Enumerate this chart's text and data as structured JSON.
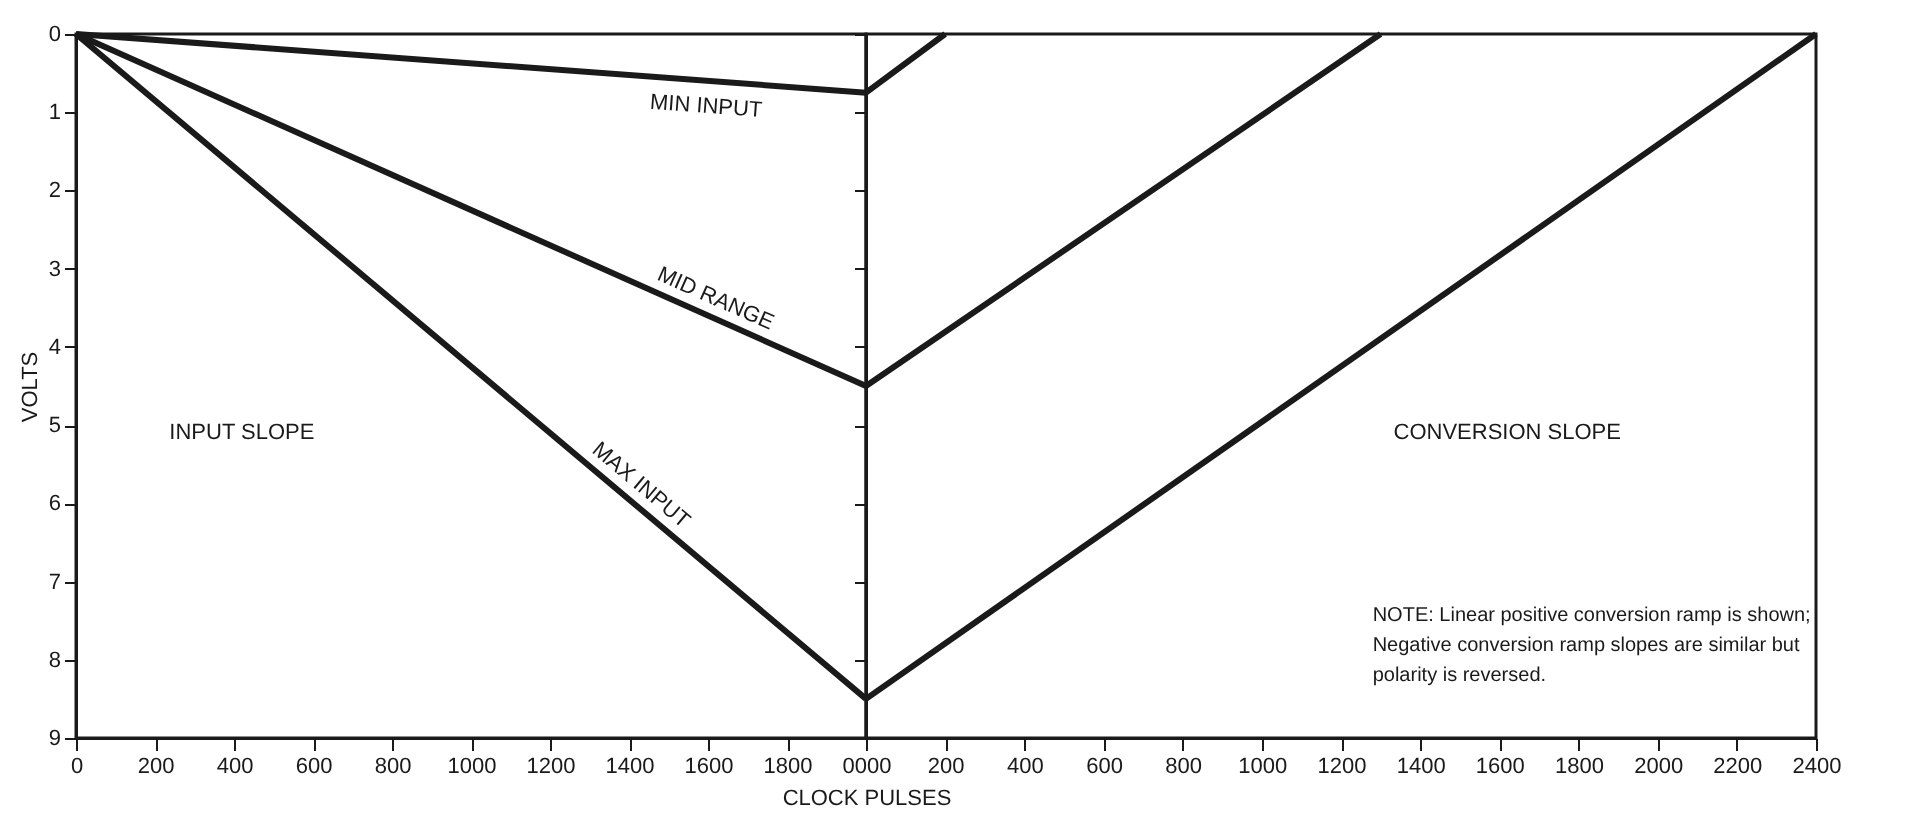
{
  "chart_data": [
    {
      "type": "line",
      "xlabel": "CLOCK PULSES",
      "ylabel": "VOLTS",
      "xlim": [
        0,
        2000
      ],
      "ylim": [
        9,
        0
      ],
      "xticks": [
        0,
        200,
        400,
        600,
        800,
        1000,
        1200,
        1400,
        1600,
        1800
      ],
      "yticks": [
        0,
        1,
        2,
        3,
        4,
        5,
        6,
        7,
        8,
        9
      ],
      "series": [
        {
          "name": "MIN INPUT",
          "color": "#1a1a1a",
          "x": [
            0,
            2000
          ],
          "values": [
            0,
            0.75
          ]
        },
        {
          "name": "MID RANGE",
          "color": "#1a1a1a",
          "x": [
            0,
            2000
          ],
          "values": [
            0,
            4.5
          ]
        },
        {
          "name": "MAX INPUT",
          "color": "#1a1a1a",
          "x": [
            0,
            2000
          ],
          "values": [
            0,
            8.5
          ]
        }
      ],
      "annotations": [
        "INPUT SLOPE"
      ],
      "grid": false,
      "marker": "none",
      "line_style": "solid"
    },
    {
      "type": "line",
      "xlim": [
        0,
        2400
      ],
      "ylim": [
        9,
        0
      ],
      "xticks": [
        {
          "value": 0,
          "label": "0000"
        },
        200,
        400,
        600,
        800,
        1000,
        1200,
        1400,
        1600,
        1800,
        2000,
        2200,
        2400
      ],
      "yticks": [
        0,
        1,
        2,
        3,
        4,
        5,
        6,
        7,
        8,
        9
      ],
      "tick_labels": "x",
      "series": [
        {
          "color": "#1a1a1a",
          "x": [
            0,
            200
          ],
          "values": [
            0.75,
            0
          ]
        },
        {
          "color": "#1a1a1a",
          "x": [
            0,
            1300
          ],
          "values": [
            4.5,
            0
          ]
        },
        {
          "color": "#1a1a1a",
          "x": [
            0,
            2400
          ],
          "values": [
            8.5,
            0
          ]
        }
      ],
      "annotations": [
        "CONVERSION SLOPE",
        "NOTE: Linear positive conversion ramp is shown;\nNegative conversion ramp slopes are similar but\npolarity is reversed."
      ],
      "grid": false,
      "marker": "none",
      "line_style": "solid"
    }
  ]
}
